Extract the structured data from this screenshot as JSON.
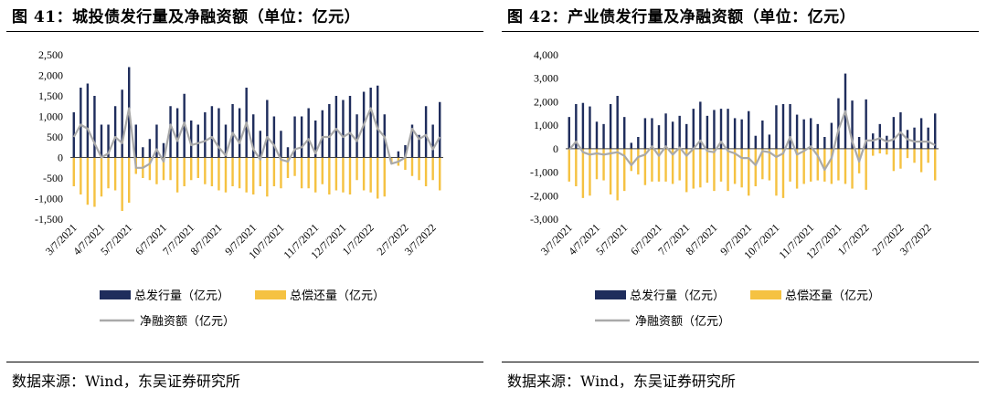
{
  "panels": [
    {
      "title": "图 41：城投债发行量及净融资额（单位：亿元）",
      "source": "数据来源：Wind，东吴证券研究所"
    },
    {
      "title": "图 42：产业债发行量及净融资额（单位：亿元）",
      "source": "数据来源：Wind，东吴证券研究所"
    }
  ],
  "colors": {
    "issuance": "#1f2d5c",
    "repayment": "#f5c242",
    "net": "#a9a9a9"
  },
  "chart_data": [
    {
      "type": "bar",
      "title": "城投债发行量及净融资额（单位：亿元）",
      "ylim": [
        -1500,
        2500
      ],
      "yticks": [
        -1500,
        -1000,
        -500,
        0,
        500,
        1000,
        1500,
        2000,
        2500
      ],
      "x_tick_labels": [
        "3/7/2021",
        "4/7/2021",
        "5/7/2021",
        "6/7/2021",
        "7/7/2021",
        "8/7/2021",
        "9/7/2021",
        "10/7/2021",
        "11/7/2021",
        "12/7/2021",
        "1/7/2022",
        "2/7/2022",
        "3/7/2022"
      ],
      "x_tick_positions": [
        0,
        4,
        8,
        13,
        17,
        21,
        26,
        30,
        35,
        39,
        43,
        48,
        52
      ],
      "legend": [
        "总发行量（亿元）",
        "总偿还量（亿元）",
        "净融资额（亿元）"
      ],
      "series": [
        {
          "name": "总发行量（亿元）",
          "kind": "bar",
          "values": [
            1100,
            1700,
            1800,
            1500,
            800,
            800,
            1250,
            1650,
            2200,
            800,
            250,
            450,
            800,
            350,
            1250,
            1200,
            1550,
            900,
            800,
            1100,
            1250,
            1200,
            800,
            1300,
            1200,
            1700,
            1050,
            650,
            1400,
            1000,
            650,
            250,
            1000,
            1000,
            1200,
            900,
            1150,
            1300,
            1500,
            1400,
            1500,
            1050,
            1600,
            1700,
            1750,
            1050,
            0,
            150,
            300,
            800,
            550,
            1250,
            800,
            1350
          ]
        },
        {
          "name": "总偿还量（亿元）",
          "kind": "bar",
          "values": [
            -700,
            -900,
            -1150,
            -1200,
            -950,
            -750,
            -800,
            -1300,
            -1100,
            -400,
            -500,
            -550,
            -650,
            -550,
            -550,
            -850,
            -700,
            -550,
            -500,
            -650,
            -700,
            -800,
            -850,
            -700,
            -750,
            -850,
            -900,
            -700,
            -950,
            -700,
            -750,
            -500,
            -450,
            -750,
            -750,
            -850,
            -650,
            -900,
            -800,
            -850,
            -900,
            -550,
            -800,
            -850,
            -1000,
            -950,
            -150,
            -200,
            -300,
            -450,
            -550,
            -700,
            -550,
            -800
          ]
        },
        {
          "name": "净融资额（亿元）",
          "kind": "line",
          "values": [
            500,
            800,
            700,
            350,
            0,
            100,
            500,
            350,
            1200,
            -250,
            -250,
            -150,
            200,
            -100,
            800,
            400,
            850,
            300,
            350,
            400,
            500,
            250,
            50,
            600,
            350,
            850,
            200,
            -50,
            500,
            300,
            -50,
            -100,
            200,
            250,
            450,
            100,
            500,
            500,
            700,
            500,
            600,
            400,
            800,
            1200,
            700,
            500,
            -150,
            -100,
            0,
            700,
            450,
            550,
            200,
            500
          ]
        }
      ]
    },
    {
      "type": "bar",
      "title": "产业债发行量及净融资额（单位：亿元）",
      "ylim": [
        -3000,
        4000
      ],
      "yticks": [
        -3000,
        -2000,
        -1000,
        0,
        1000,
        2000,
        3000,
        4000
      ],
      "x_tick_labels": [
        "3/7/2021",
        "4/7/2021",
        "5/7/2021",
        "6/7/2021",
        "7/7/2021",
        "8/7/2021",
        "9/7/2021",
        "10/7/2021",
        "11/7/2021",
        "12/7/2021",
        "1/7/2022",
        "2/7/2022",
        "3/7/2022"
      ],
      "x_tick_positions": [
        0,
        4,
        8,
        13,
        17,
        21,
        26,
        30,
        35,
        39,
        43,
        48,
        52
      ],
      "legend": [
        "总发行量（亿元）",
        "总偿还量（亿元）",
        "净融资额（亿元）"
      ],
      "series": [
        {
          "name": "总发行量（亿元）",
          "kind": "bar",
          "values": [
            1350,
            1900,
            1950,
            1800,
            1150,
            1050,
            1900,
            2250,
            1350,
            250,
            500,
            1300,
            1300,
            1000,
            1500,
            1150,
            1400,
            1050,
            1700,
            2000,
            1400,
            1650,
            1700,
            1700,
            1300,
            1250,
            1600,
            550,
            1200,
            600,
            1850,
            1900,
            1900,
            1450,
            1250,
            1300,
            1050,
            500,
            1100,
            2150,
            3200,
            2050,
            500,
            2100,
            650,
            1050,
            550,
            1350,
            1550,
            800,
            900,
            1300,
            900,
            1500
          ]
        },
        {
          "name": "总偿还量（亿元）",
          "kind": "bar",
          "values": [
            -1400,
            -1600,
            -2100,
            -2000,
            -1300,
            -1350,
            -1950,
            -2200,
            -1800,
            -950,
            -1100,
            -1550,
            -1400,
            -1400,
            -1400,
            -1500,
            -1350,
            -1850,
            -1700,
            -1650,
            -1450,
            -1800,
            -1400,
            -1800,
            -1500,
            -1650,
            -2000,
            -1600,
            -1300,
            -1350,
            -2000,
            -2100,
            -1400,
            -1700,
            -1500,
            -1400,
            -1350,
            -1400,
            -1500,
            -1350,
            -1500,
            -1700,
            -1050,
            -1750,
            -300,
            -200,
            -250,
            -950,
            -850,
            -400,
            -600,
            -1000,
            -600,
            -1350
          ]
        },
        {
          "name": "净融资额（亿元）",
          "kind": "line",
          "values": [
            -50,
            300,
            -150,
            -250,
            -200,
            -250,
            -200,
            -150,
            -300,
            -700,
            -350,
            -250,
            100,
            -300,
            100,
            -250,
            50,
            -300,
            0,
            350,
            -100,
            -150,
            300,
            -100,
            -200,
            -400,
            -400,
            -700,
            -100,
            -150,
            -350,
            -200,
            500,
            -250,
            -100,
            100,
            -300,
            -900,
            -400,
            800,
            1600,
            300,
            -550,
            350,
            350,
            450,
            300,
            400,
            700,
            400,
            300,
            300,
            300,
            150
          ]
        }
      ]
    }
  ]
}
